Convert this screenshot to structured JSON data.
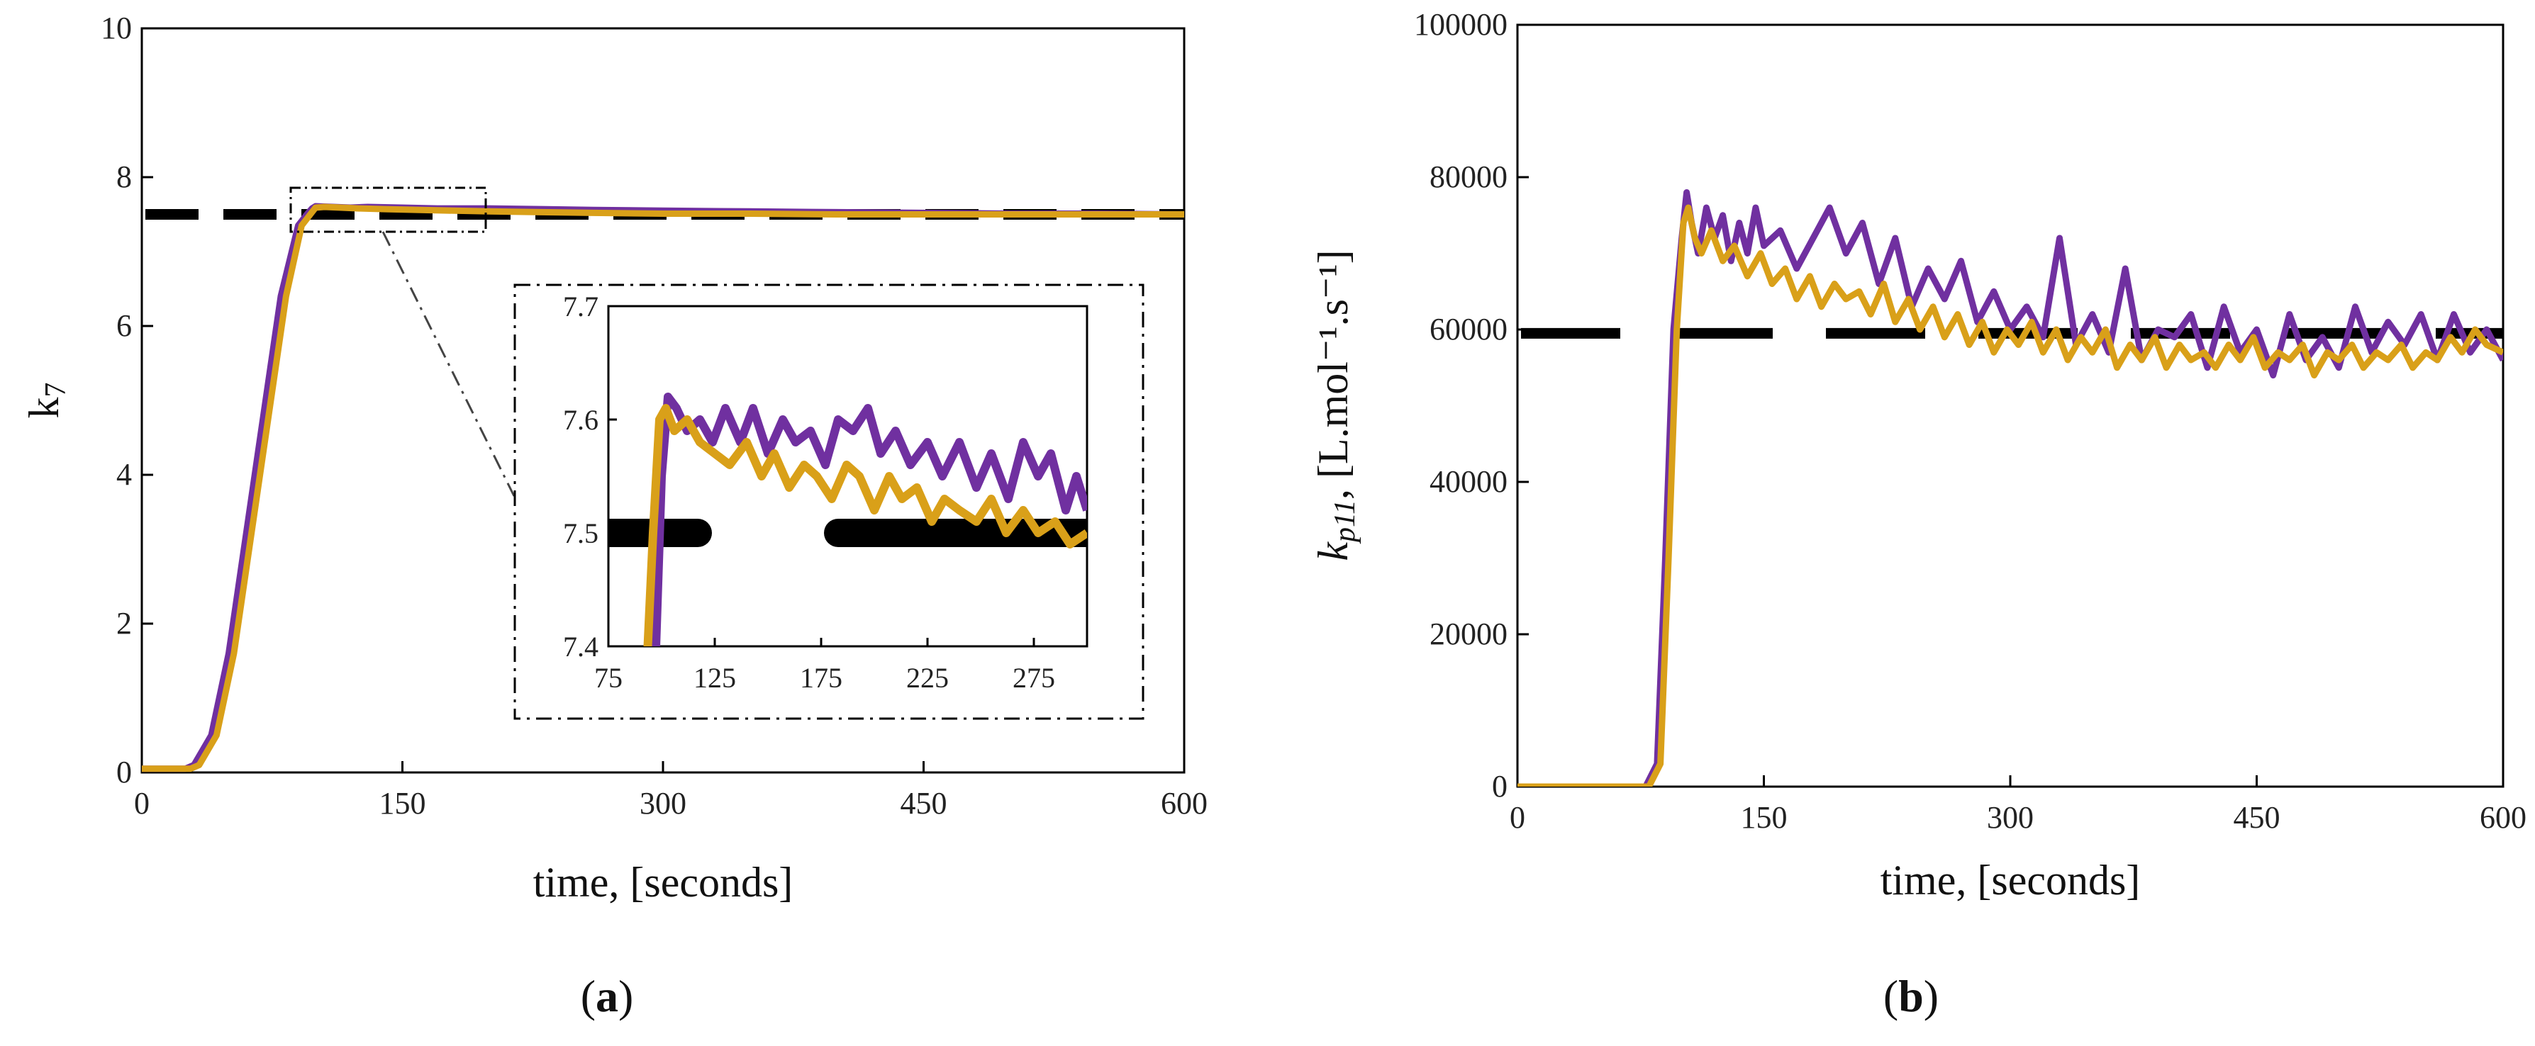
{
  "colors": {
    "purple": "#7030a0",
    "gold": "#d9a019",
    "setpoint": "#000000"
  },
  "chart_data": [
    {
      "type": "line",
      "panel": "a",
      "panel_label": "(a)",
      "panel_letter": "a",
      "xlabel": "time, [seconds]",
      "ylabel": "k7",
      "ylabel_main": "k",
      "ylabel_sub": "7",
      "xlim": [
        0,
        600
      ],
      "ylim": [
        0,
        10
      ],
      "xticks": [
        "0",
        "150",
        "300",
        "450",
        "600"
      ],
      "yticks": [
        "0",
        "2",
        "4",
        "6",
        "8",
        "10"
      ],
      "setpoint": 7.5,
      "series": [
        {
          "name": "purple",
          "color": "#7030a0",
          "x": [
            0,
            25,
            30,
            40,
            50,
            60,
            70,
            80,
            90,
            95,
            98,
            100,
            110,
            120,
            130,
            150,
            170,
            200,
            230,
            260,
            300,
            350,
            400,
            450,
            500,
            550,
            600
          ],
          "y": [
            0.05,
            0.05,
            0.1,
            0.5,
            1.6,
            3.2,
            4.8,
            6.4,
            7.35,
            7.5,
            7.58,
            7.61,
            7.6,
            7.59,
            7.6,
            7.59,
            7.58,
            7.58,
            7.57,
            7.56,
            7.55,
            7.54,
            7.53,
            7.52,
            7.51,
            7.51,
            7.5
          ]
        },
        {
          "name": "gold",
          "color": "#d9a019",
          "x": [
            0,
            28,
            33,
            43,
            53,
            63,
            73,
            83,
            92,
            97,
            100,
            105,
            115,
            125,
            140,
            160,
            180,
            200,
            230,
            260,
            300,
            350,
            400,
            450,
            500,
            550,
            600
          ],
          "y": [
            0.05,
            0.05,
            0.1,
            0.5,
            1.6,
            3.2,
            4.8,
            6.4,
            7.35,
            7.5,
            7.59,
            7.6,
            7.59,
            7.58,
            7.57,
            7.56,
            7.55,
            7.54,
            7.53,
            7.52,
            7.51,
            7.51,
            7.5,
            7.5,
            7.5,
            7.5,
            7.5
          ]
        }
      ],
      "inset": {
        "xlim": [
          75,
          300
        ],
        "ylim": [
          7.4,
          7.7
        ],
        "xticks": [
          "75",
          "125",
          "175",
          "225",
          "275"
        ],
        "yticks": [
          "7.4",
          "7.5",
          "7.6",
          "7.7"
        ],
        "setpoint_segments": [
          [
            75,
            117
          ],
          [
            183,
            300
          ]
        ],
        "series": [
          {
            "name": "purple",
            "x": [
              97,
              100,
              103,
              107,
              112,
              118,
              124,
              130,
              137,
              143,
              150,
              157,
              163,
              170,
              177,
              183,
              190,
              197,
              203,
              210,
              217,
              225,
              232,
              240,
              248,
              255,
              263,
              270,
              277,
              283,
              290,
              295,
              300
            ],
            "y": [
              7.38,
              7.55,
              7.62,
              7.61,
              7.59,
              7.6,
              7.58,
              7.61,
              7.58,
              7.61,
              7.57,
              7.6,
              7.58,
              7.59,
              7.56,
              7.6,
              7.59,
              7.61,
              7.57,
              7.59,
              7.56,
              7.58,
              7.55,
              7.58,
              7.54,
              7.57,
              7.53,
              7.58,
              7.55,
              7.57,
              7.52,
              7.55,
              7.52
            ]
          },
          {
            "name": "gold",
            "x": [
              93,
              96,
              99,
              102,
              106,
              112,
              118,
              125,
              132,
              140,
              147,
              153,
              160,
              167,
              173,
              180,
              187,
              193,
              200,
              207,
              213,
              220,
              227,
              233,
              240,
              248,
              255,
              262,
              270,
              277,
              285,
              292,
              300
            ],
            "y": [
              7.38,
              7.5,
              7.6,
              7.61,
              7.59,
              7.6,
              7.58,
              7.57,
              7.56,
              7.58,
              7.55,
              7.57,
              7.54,
              7.56,
              7.55,
              7.53,
              7.56,
              7.55,
              7.52,
              7.55,
              7.53,
              7.54,
              7.51,
              7.53,
              7.52,
              7.51,
              7.53,
              7.5,
              7.52,
              7.5,
              7.51,
              7.49,
              7.5
            ]
          }
        ]
      }
    },
    {
      "type": "line",
      "panel": "b",
      "panel_label": "(b)",
      "panel_letter": "b",
      "xlabel": "time, [seconds]",
      "ylabel": "kp11, [L.mol⁻¹.s⁻¹]",
      "ylabel_main": "k",
      "ylabel_sub": "p11",
      "ylabel_unit": ", [L.mol⁻¹.s⁻¹]",
      "xlim": [
        0,
        600
      ],
      "ylim": [
        0,
        100000
      ],
      "xticks": [
        "0",
        "150",
        "300",
        "450",
        "600"
      ],
      "yticks": [
        "0",
        "20000",
        "40000",
        "60000",
        "80000",
        "100000"
      ],
      "setpoint": 59500,
      "series": [
        {
          "name": "purple",
          "color": "#7030a0",
          "x": [
            0,
            78,
            85,
            90,
            95,
            100,
            103,
            106,
            110,
            115,
            120,
            125,
            130,
            135,
            140,
            145,
            150,
            160,
            170,
            180,
            190,
            200,
            210,
            220,
            230,
            240,
            250,
            260,
            270,
            280,
            290,
            300,
            310,
            320,
            330,
            340,
            350,
            360,
            370,
            380,
            390,
            400,
            410,
            420,
            430,
            440,
            450,
            460,
            470,
            480,
            490,
            500,
            510,
            520,
            530,
            540,
            550,
            560,
            570,
            580,
            590,
            600
          ],
          "y": [
            0,
            0,
            3000,
            30000,
            60000,
            72000,
            78000,
            74000,
            70000,
            76000,
            72000,
            75000,
            69000,
            74000,
            70000,
            76000,
            71000,
            73000,
            68000,
            72000,
            76000,
            70000,
            74000,
            66000,
            72000,
            63000,
            68000,
            64000,
            69000,
            61000,
            65000,
            60000,
            63000,
            59000,
            72000,
            58000,
            62000,
            57000,
            68000,
            56000,
            60000,
            59000,
            62000,
            55000,
            63000,
            57000,
            60000,
            54000,
            62000,
            56000,
            59000,
            55000,
            63000,
            57000,
            61000,
            58000,
            62000,
            56000,
            62000,
            57000,
            60000,
            56000
          ]
        },
        {
          "name": "gold",
          "color": "#d9a019",
          "x": [
            0,
            80,
            87,
            92,
            97,
            101,
            104,
            108,
            112,
            118,
            125,
            132,
            140,
            148,
            155,
            163,
            170,
            178,
            185,
            193,
            200,
            208,
            215,
            223,
            230,
            238,
            245,
            253,
            260,
            268,
            275,
            283,
            290,
            298,
            305,
            313,
            320,
            328,
            335,
            343,
            350,
            358,
            365,
            373,
            380,
            388,
            395,
            403,
            410,
            418,
            425,
            433,
            440,
            448,
            455,
            463,
            470,
            478,
            485,
            493,
            500,
            508,
            515,
            523,
            530,
            538,
            545,
            553,
            560,
            568,
            575,
            583,
            590,
            600
          ],
          "y": [
            0,
            0,
            3000,
            30000,
            60000,
            74000,
            76000,
            72000,
            70000,
            73000,
            69000,
            71000,
            67000,
            70000,
            66000,
            68000,
            64000,
            67000,
            63000,
            66000,
            64000,
            65000,
            62000,
            66000,
            61000,
            64000,
            60000,
            63000,
            59000,
            62000,
            58000,
            61000,
            57000,
            60000,
            58000,
            61000,
            57000,
            60000,
            56000,
            59000,
            57000,
            60000,
            55000,
            58000,
            56000,
            59000,
            55000,
            58000,
            56000,
            57000,
            55000,
            58000,
            56000,
            59000,
            55000,
            57000,
            56000,
            58000,
            54000,
            57000,
            56000,
            58000,
            55000,
            57000,
            56000,
            58000,
            55000,
            57000,
            56000,
            59000,
            57000,
            60000,
            58000,
            57000
          ]
        }
      ]
    }
  ]
}
